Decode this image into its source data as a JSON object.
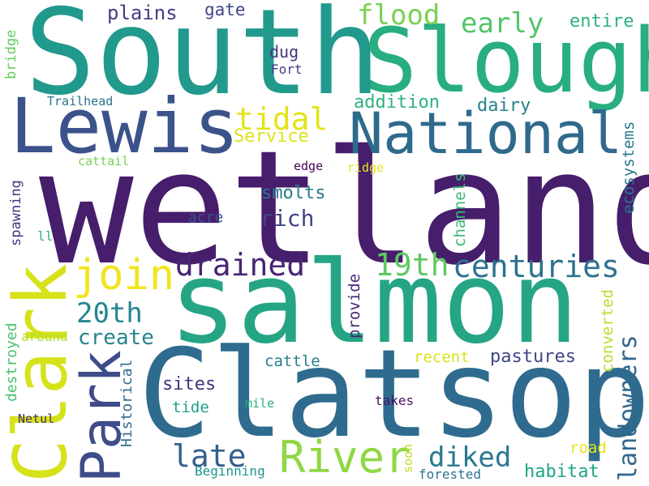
{
  "word_cloud": {
    "background": "#ffffff",
    "words": [
      {
        "text": "wetland",
        "color": "#461e6b",
        "orientation": "horizontal"
      },
      {
        "text": "salmon",
        "color": "#25a584",
        "orientation": "horizontal"
      },
      {
        "text": "Clatsop",
        "color": "#2f6b8e",
        "orientation": "horizontal"
      },
      {
        "text": "South",
        "color": "#21998c",
        "orientation": "horizontal"
      },
      {
        "text": "Slough",
        "color": "#28ae80",
        "orientation": "horizontal"
      },
      {
        "text": "Lewis",
        "color": "#3b528b",
        "orientation": "horizontal"
      },
      {
        "text": "Clark",
        "color": "#d6e21a",
        "orientation": "vertical"
      },
      {
        "text": "National",
        "color": "#2f6a8d",
        "orientation": "horizontal"
      },
      {
        "text": "Park",
        "color": "#3e4c8a",
        "orientation": "vertical"
      },
      {
        "text": "River",
        "color": "#8fd744",
        "orientation": "horizontal"
      },
      {
        "text": "join",
        "color": "#f1e51d",
        "orientation": "horizontal"
      },
      {
        "text": "drained",
        "color": "#482475",
        "orientation": "horizontal"
      },
      {
        "text": "centuries",
        "color": "#2c738e",
        "orientation": "horizontal"
      },
      {
        "text": "19th",
        "color": "#5ec962",
        "orientation": "horizontal"
      },
      {
        "text": "20th",
        "color": "#23888e",
        "orientation": "horizontal"
      },
      {
        "text": "tidal",
        "color": "#e2e419",
        "orientation": "horizontal"
      },
      {
        "text": "flood",
        "color": "#7ad151",
        "orientation": "horizontal"
      },
      {
        "text": "early",
        "color": "#52c569",
        "orientation": "horizontal"
      },
      {
        "text": "late",
        "color": "#355f8d",
        "orientation": "horizontal"
      },
      {
        "text": "diked",
        "color": "#2a788e",
        "orientation": "horizontal"
      },
      {
        "text": "landowners",
        "color": "#31688e",
        "orientation": "vertical"
      },
      {
        "text": "rich",
        "color": "#414487",
        "orientation": "horizontal"
      },
      {
        "text": "create",
        "color": "#25858e",
        "orientation": "horizontal"
      },
      {
        "text": "plains",
        "color": "#433e85",
        "orientation": "horizontal"
      },
      {
        "text": "pastures",
        "color": "#3f4788",
        "orientation": "horizontal"
      },
      {
        "text": "ecosystems",
        "color": "#2a788e",
        "orientation": "vertical"
      },
      {
        "text": "sites",
        "color": "#46337f",
        "orientation": "horizontal"
      },
      {
        "text": "converted",
        "color": "#b5de2b",
        "orientation": "vertical"
      },
      {
        "text": "channels",
        "color": "#3bbb75",
        "orientation": "vertical"
      },
      {
        "text": "entire",
        "color": "#2db27d",
        "orientation": "horizontal"
      },
      {
        "text": "habitat",
        "color": "#20a486",
        "orientation": "horizontal"
      },
      {
        "text": "provide",
        "color": "#482878",
        "orientation": "vertical"
      },
      {
        "text": "addition",
        "color": "#2db27d",
        "orientation": "horizontal"
      },
      {
        "text": "dairy",
        "color": "#26828e",
        "orientation": "horizontal"
      },
      {
        "text": "Service",
        "color": "#dde318",
        "orientation": "horizontal"
      },
      {
        "text": "smolts",
        "color": "#2a788e",
        "orientation": "horizontal"
      },
      {
        "text": "gate",
        "color": "#404688",
        "orientation": "horizontal"
      },
      {
        "text": "dug",
        "color": "#46337f",
        "orientation": "horizontal"
      },
      {
        "text": "Fort",
        "color": "#443983",
        "orientation": "horizontal"
      },
      {
        "text": "acre",
        "color": "#3b528b",
        "orientation": "horizontal"
      },
      {
        "text": "cattle",
        "color": "#287d8e",
        "orientation": "horizontal"
      },
      {
        "text": "tide",
        "color": "#1fa188",
        "orientation": "horizontal"
      },
      {
        "text": "recent",
        "color": "#d8e219",
        "orientation": "horizontal"
      },
      {
        "text": "road",
        "color": "#e5e419",
        "orientation": "horizontal"
      },
      {
        "text": "Historical",
        "color": "#306a8e",
        "orientation": "vertical"
      },
      {
        "text": "destroyed",
        "color": "#4ac16d",
        "orientation": "vertical"
      },
      {
        "text": "spawning",
        "color": "#46327e",
        "orientation": "vertical"
      },
      {
        "text": "bridge",
        "color": "#65cb5e",
        "orientation": "vertical"
      },
      {
        "text": "Trailhead",
        "color": "#2c728e",
        "orientation": "horizontal"
      },
      {
        "text": "cattail",
        "color": "#77d153",
        "orientation": "horizontal"
      },
      {
        "text": "edge",
        "color": "#440154",
        "orientation": "horizontal"
      },
      {
        "text": "ridge",
        "color": "#e7e419",
        "orientation": "horizontal"
      },
      {
        "text": "ll",
        "color": "#31b57b",
        "orientation": "horizontal"
      },
      {
        "text": "around",
        "color": "#b0dd2f",
        "orientation": "horizontal"
      },
      {
        "text": "mile",
        "color": "#2ab07f",
        "orientation": "horizontal"
      },
      {
        "text": "takes",
        "color": "#471063",
        "orientation": "horizontal"
      },
      {
        "text": "Netul",
        "color": "#472d7b",
        "orientation": "horizontal"
      },
      {
        "text": "Beginning",
        "color": "#1f968b",
        "orientation": "horizontal"
      },
      {
        "text": "soon",
        "color": "#bddf26",
        "orientation": "vertical"
      },
      {
        "text": "forested",
        "color": "#2c728e",
        "orientation": "horizontal"
      }
    ]
  }
}
